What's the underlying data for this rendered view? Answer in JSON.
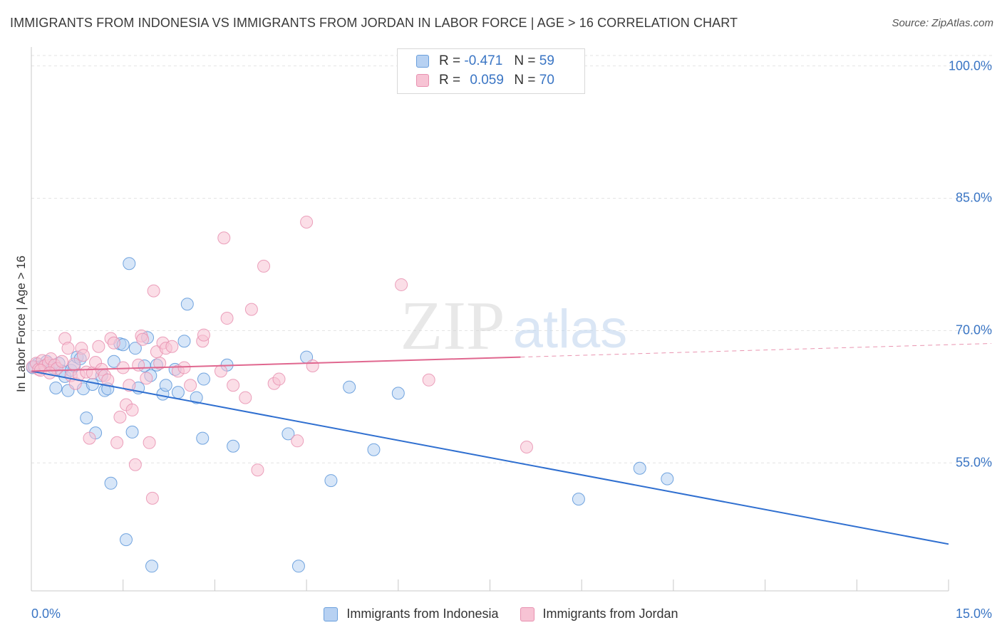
{
  "title": "IMMIGRANTS FROM INDONESIA VS IMMIGRANTS FROM JORDAN IN LABOR FORCE | AGE > 16 CORRELATION CHART",
  "source": "Source: ZipAtlas.com",
  "watermark": {
    "zip": "ZIP",
    "atlas": "atlas"
  },
  "stats": {
    "rows": [
      {
        "r_label": "R =",
        "r_value": "-0.471",
        "n_label": "N =",
        "n_value": "59"
      },
      {
        "r_label": "R =",
        "r_value": "0.059",
        "n_label": "N =",
        "n_value": "70"
      }
    ]
  },
  "legend": [
    "Immigrants from Indonesia",
    "Immigrants from Jordan"
  ],
  "colors": {
    "indonesia_fill": "#b7d1f2",
    "indonesia_stroke": "#5b95d9",
    "indonesia_line": "#2f6fd0",
    "jordan_fill": "#f7c3d4",
    "jordan_stroke": "#e891b0",
    "jordan_line": "#e0678f",
    "axis_text": "#3a75c4",
    "grid": "#e3e3e3"
  },
  "chart_data": {
    "type": "scatter",
    "title": "IMMIGRANTS FROM INDONESIA VS IMMIGRANTS FROM JORDAN IN LABOR FORCE | AGE > 16 CORRELATION CHART",
    "xlabel": "",
    "ylabel": "In Labor Force | Age > 16",
    "xlim": [
      0,
      15
    ],
    "ylim": [
      40.5,
      101.5
    ],
    "y_ticks": [
      55,
      70,
      85,
      100
    ],
    "y_tick_labels": [
      "55.0%",
      "70.0%",
      "85.0%",
      "100.0%"
    ],
    "x_tick_labels": [
      "0.0%",
      "15.0%"
    ],
    "grid": "horizontal dashed",
    "legend_position": "bottom-center",
    "series": [
      {
        "name": "Immigrants from Indonesia",
        "r": -0.471,
        "n": 59,
        "trend": {
          "x": [
            0,
            15
          ],
          "y": [
            65.4,
            45.8
          ],
          "style": "solid"
        },
        "points": [
          [
            0.02,
            65.8
          ],
          [
            0.1,
            66.2
          ],
          [
            0.15,
            65.9
          ],
          [
            0.2,
            66.0
          ],
          [
            0.25,
            66.5
          ],
          [
            0.3,
            66.1
          ],
          [
            0.35,
            65.8
          ],
          [
            0.4,
            63.5
          ],
          [
            0.45,
            66.3
          ],
          [
            0.5,
            65.4
          ],
          [
            0.55,
            64.8
          ],
          [
            0.6,
            63.2
          ],
          [
            0.65,
            65.5
          ],
          [
            0.7,
            66.0
          ],
          [
            0.75,
            67.0
          ],
          [
            0.8,
            66.8
          ],
          [
            0.85,
            63.4
          ],
          [
            0.9,
            60.1
          ],
          [
            1.0,
            63.9
          ],
          [
            1.05,
            58.4
          ],
          [
            1.15,
            64.9
          ],
          [
            1.2,
            63.2
          ],
          [
            1.25,
            63.4
          ],
          [
            1.3,
            52.7
          ],
          [
            1.35,
            66.5
          ],
          [
            1.45,
            68.5
          ],
          [
            1.5,
            68.4
          ],
          [
            1.55,
            46.3
          ],
          [
            1.6,
            77.6
          ],
          [
            1.65,
            58.5
          ],
          [
            1.7,
            68.0
          ],
          [
            1.75,
            63.5
          ],
          [
            1.85,
            66.0
          ],
          [
            1.9,
            69.2
          ],
          [
            1.95,
            64.9
          ],
          [
            1.97,
            43.3
          ],
          [
            2.05,
            66.1
          ],
          [
            2.15,
            62.8
          ],
          [
            2.2,
            63.8
          ],
          [
            2.35,
            65.6
          ],
          [
            2.4,
            63.0
          ],
          [
            2.5,
            68.8
          ],
          [
            2.55,
            73.0
          ],
          [
            2.7,
            62.4
          ],
          [
            2.8,
            57.8
          ],
          [
            2.82,
            64.5
          ],
          [
            3.2,
            66.1
          ],
          [
            3.3,
            56.9
          ],
          [
            4.2,
            58.3
          ],
          [
            4.37,
            43.3
          ],
          [
            4.5,
            67.0
          ],
          [
            4.9,
            53.0
          ],
          [
            5.2,
            63.6
          ],
          [
            5.6,
            56.5
          ],
          [
            6.0,
            62.9
          ],
          [
            8.95,
            50.9
          ],
          [
            9.95,
            54.4
          ],
          [
            10.4,
            53.2
          ],
          [
            0.05,
            65.9
          ]
        ]
      },
      {
        "name": "Immigrants from Jordan",
        "r": 0.059,
        "n": 70,
        "trend": {
          "x": [
            0,
            8.0,
            15
          ],
          "y": [
            65.4,
            67.0,
            68.5
          ],
          "style": "solid-then-dashed"
        },
        "points": [
          [
            0.02,
            65.9
          ],
          [
            0.08,
            66.3
          ],
          [
            0.12,
            65.6
          ],
          [
            0.18,
            66.6
          ],
          [
            0.22,
            66.0
          ],
          [
            0.28,
            66.3
          ],
          [
            0.32,
            66.8
          ],
          [
            0.38,
            66.1
          ],
          [
            0.42,
            65.7
          ],
          [
            0.5,
            66.5
          ],
          [
            0.55,
            69.1
          ],
          [
            0.6,
            68.0
          ],
          [
            0.65,
            64.9
          ],
          [
            0.7,
            66.2
          ],
          [
            0.72,
            64.0
          ],
          [
            0.78,
            65.0
          ],
          [
            0.82,
            68.0
          ],
          [
            0.85,
            67.2
          ],
          [
            0.9,
            65.3
          ],
          [
            0.95,
            57.8
          ],
          [
            1.0,
            65.2
          ],
          [
            1.05,
            66.4
          ],
          [
            1.1,
            68.2
          ],
          [
            1.15,
            65.6
          ],
          [
            1.2,
            64.9
          ],
          [
            1.25,
            64.4
          ],
          [
            1.3,
            69.1
          ],
          [
            1.35,
            68.6
          ],
          [
            1.4,
            57.3
          ],
          [
            1.45,
            60.2
          ],
          [
            1.5,
            65.8
          ],
          [
            1.55,
            61.6
          ],
          [
            1.6,
            63.8
          ],
          [
            1.65,
            61.0
          ],
          [
            1.7,
            54.8
          ],
          [
            1.75,
            66.1
          ],
          [
            1.8,
            69.4
          ],
          [
            1.82,
            69.0
          ],
          [
            1.88,
            64.6
          ],
          [
            1.93,
            57.3
          ],
          [
            1.98,
            51.0
          ],
          [
            2.0,
            74.5
          ],
          [
            2.05,
            67.6
          ],
          [
            2.1,
            66.3
          ],
          [
            2.15,
            68.6
          ],
          [
            2.2,
            68.0
          ],
          [
            2.3,
            68.2
          ],
          [
            2.4,
            65.4
          ],
          [
            2.5,
            65.8
          ],
          [
            2.6,
            63.8
          ],
          [
            2.8,
            68.8
          ],
          [
            2.82,
            69.5
          ],
          [
            3.1,
            65.4
          ],
          [
            3.15,
            80.5
          ],
          [
            3.2,
            71.4
          ],
          [
            3.3,
            63.8
          ],
          [
            3.5,
            62.4
          ],
          [
            3.6,
            72.4
          ],
          [
            3.7,
            54.2
          ],
          [
            3.8,
            77.3
          ],
          [
            3.97,
            64.0
          ],
          [
            4.05,
            64.5
          ],
          [
            4.35,
            57.5
          ],
          [
            4.5,
            82.3
          ],
          [
            4.6,
            66.0
          ],
          [
            6.05,
            75.2
          ],
          [
            6.5,
            64.4
          ],
          [
            8.1,
            56.8
          ],
          [
            0.15,
            65.5
          ],
          [
            0.3,
            65.2
          ]
        ]
      }
    ]
  }
}
